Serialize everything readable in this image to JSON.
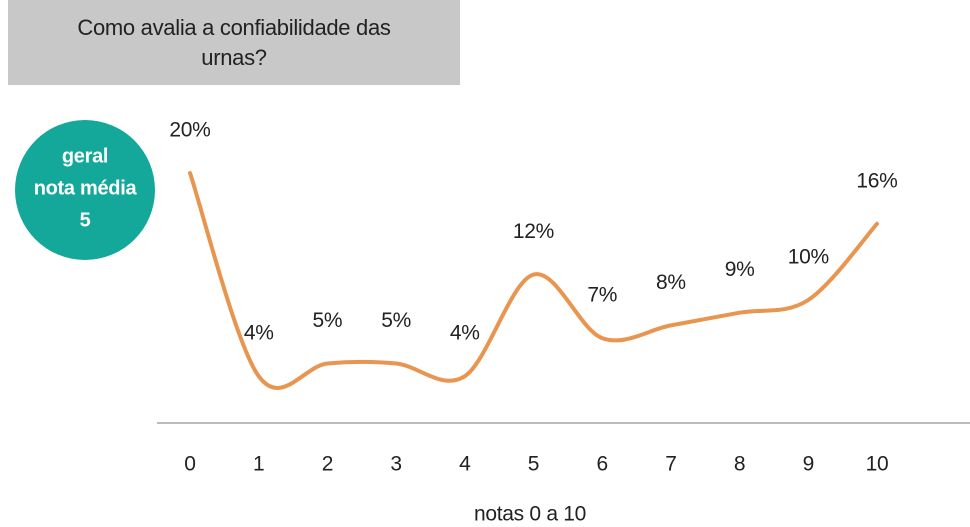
{
  "chart_data": {
    "type": "line",
    "title": "Como avalia a confiabilidade das urnas?",
    "badge": {
      "label": [
        "geral",
        "nota média"
      ],
      "value": 5,
      "color": "#14a89a"
    },
    "categories": [
      "0",
      "1",
      "2",
      "3",
      "4",
      "5",
      "6",
      "7",
      "8",
      "9",
      "10"
    ],
    "values": [
      20,
      4,
      5,
      5,
      4,
      12,
      7,
      8,
      9,
      10,
      16
    ],
    "value_labels": [
      "20%",
      "4%",
      "5%",
      "5%",
      "4%",
      "12%",
      "7%",
      "8%",
      "9%",
      "10%",
      "16%"
    ],
    "color": "#e8954f",
    "ylim": [
      0,
      20
    ],
    "xlabel": "notas 0 a 10"
  }
}
